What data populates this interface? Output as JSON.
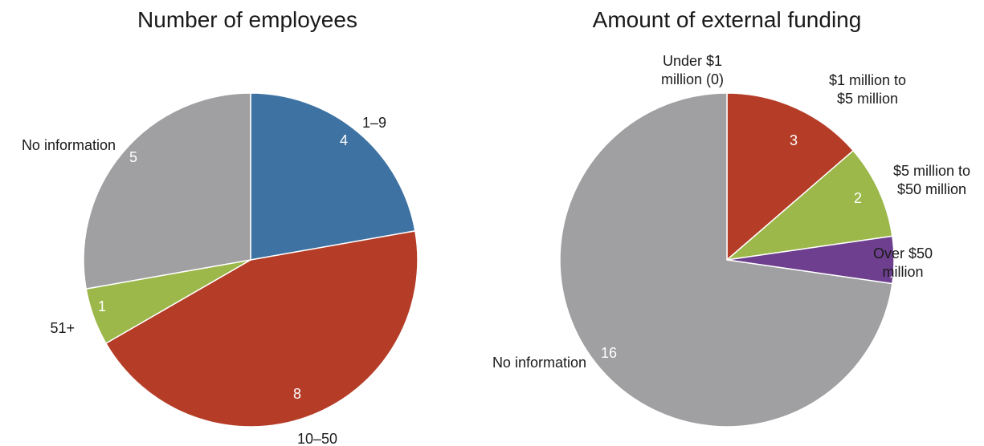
{
  "chart_data": [
    {
      "type": "pie",
      "title": "Number of employees",
      "slices": [
        {
          "label": "1–9",
          "value": 4,
          "color": "#3E72A2"
        },
        {
          "label": "10–50",
          "value": 8,
          "color": "#B53D28"
        },
        {
          "label": "51+",
          "value": 1,
          "color": "#9CB84A"
        },
        {
          "label": "No information",
          "value": 5,
          "color": "#A0A0A2"
        }
      ]
    },
    {
      "type": "pie",
      "title": "Amount of external funding",
      "slices": [
        {
          "label": [
            "Under $1",
            "million (0)"
          ],
          "value": 0,
          "color": "#B53D28"
        },
        {
          "label": [
            "$1 million to",
            "$5 million"
          ],
          "value": 3,
          "color": "#B53D28"
        },
        {
          "label": [
            "$5 million to",
            "$50 million"
          ],
          "value": 2,
          "color": "#9CB84A"
        },
        {
          "label": [
            "Over $50",
            "million"
          ],
          "value": 1,
          "color": "#6D3F8E"
        },
        {
          "label": "No information",
          "value": 16,
          "color": "#A0A0A2"
        }
      ]
    }
  ]
}
